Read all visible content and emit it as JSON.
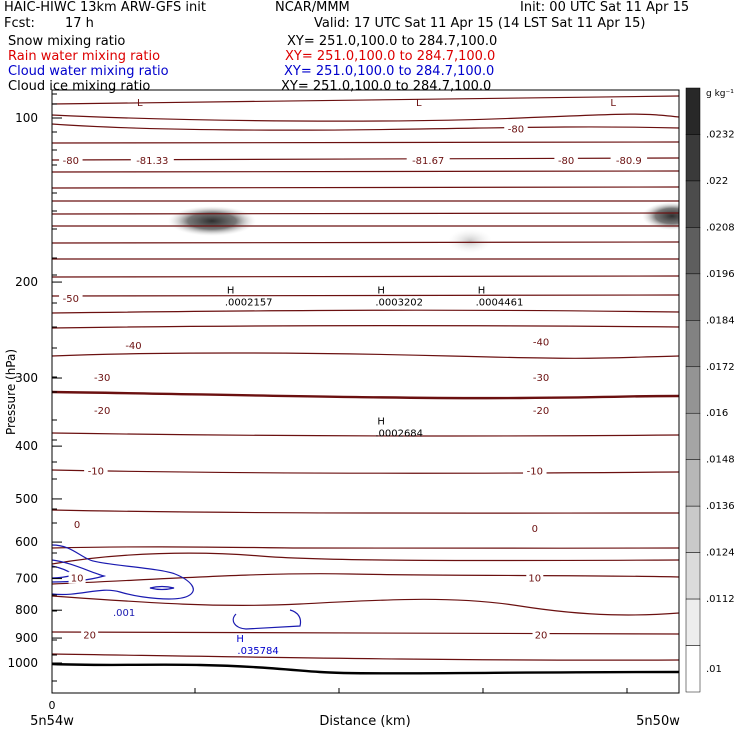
{
  "header": {
    "title_left": "HAIC-HIWC 13km ARW-GFS init",
    "title_center": "NCAR/MMM",
    "init": "Init: 00 UTC Sat 11 Apr 15",
    "fcst_label": "Fcst:",
    "fcst_value": "17 h",
    "valid": "Valid: 17 UTC Sat 11 Apr 15 (14 LST Sat 11 Apr 15)",
    "fields": [
      {
        "name": "Snow mixing ratio",
        "xy": "XY= 251.0,100.0 to 284.7,100.0",
        "color": "#000000"
      },
      {
        "name": "Rain water mixing ratio",
        "xy": "XY= 251.0,100.0 to 284.7,100.0",
        "color": "#dd0000"
      },
      {
        "name": "Cloud water mixing ratio",
        "xy": "XY= 251.0,100.0 to 284.7,100.0",
        "color": "#0000cc"
      },
      {
        "name": "Cloud ice mixing ratio",
        "xy": "XY= 251.0,100.0 to 284.7,100.0",
        "color": "#000000"
      }
    ]
  },
  "chart_data": {
    "type": "contour cross-section",
    "ylabel": "Pressure (hPa)",
    "xlabel": "Distance (km)",
    "x_tick_label": "0",
    "x_endpoint_left": "5n54w",
    "x_endpoint_right": "5n50w",
    "y_ticks": [
      "100",
      "200",
      "300",
      "400",
      "500",
      "600",
      "700",
      "800",
      "900",
      "1000"
    ],
    "y_scale": "log",
    "ylim": [
      1050,
      50
    ],
    "colorbar": {
      "unit": "g kg⁻¹",
      "labels": [
        ".0232",
        ".022",
        ".0208",
        ".0196",
        ".0184",
        ".0172",
        ".016",
        ".0148",
        ".0136",
        ".0124",
        ".0112",
        ".01"
      ]
    },
    "temperature_labels": [
      {
        "text": "-80",
        "p": 120,
        "xf": 0.03
      },
      {
        "text": "-81.33",
        "p": 120,
        "xf": 0.16
      },
      {
        "text": "-81.67",
        "p": 120,
        "xf": 0.6
      },
      {
        "text": "-80",
        "p": 105,
        "xf": 0.74
      },
      {
        "text": "-80",
        "p": 120,
        "xf": 0.82
      },
      {
        "text": "-80.9",
        "p": 120,
        "xf": 0.92
      },
      {
        "text": "-50",
        "p": 215,
        "xf": 0.03
      },
      {
        "text": "-40",
        "p": 262,
        "xf": 0.13
      },
      {
        "text": "-40",
        "p": 258,
        "xf": 0.78
      },
      {
        "text": "-30",
        "p": 300,
        "xf": 0.08
      },
      {
        "text": "-30",
        "p": 300,
        "xf": 0.78
      },
      {
        "text": "-20",
        "p": 345,
        "xf": 0.08
      },
      {
        "text": "-20",
        "p": 345,
        "xf": 0.78
      },
      {
        "text": "-10",
        "p": 445,
        "xf": 0.07
      },
      {
        "text": "-10",
        "p": 445,
        "xf": 0.77
      },
      {
        "text": "0",
        "p": 558,
        "xf": 0.04
      },
      {
        "text": "0",
        "p": 568,
        "xf": 0.77
      },
      {
        "text": "10",
        "p": 700,
        "xf": 0.04
      },
      {
        "text": "10",
        "p": 700,
        "xf": 0.77
      },
      {
        "text": "20",
        "p": 890,
        "xf": 0.06
      },
      {
        "text": "20",
        "p": 890,
        "xf": 0.78
      }
    ],
    "extrema_labels": [
      {
        "mark": "L",
        "value": "",
        "p": 95,
        "xf": 0.14,
        "color": "#6b0f0f"
      },
      {
        "mark": "L",
        "value": "",
        "p": 95,
        "xf": 0.585,
        "color": "#6b0f0f"
      },
      {
        "mark": "L",
        "value": "",
        "p": 95,
        "xf": 0.895,
        "color": "#6b0f0f"
      },
      {
        "mark": "H",
        "value": ".0002157",
        "p": 210,
        "xf": 0.285,
        "color": "#000000"
      },
      {
        "mark": "H",
        "value": ".0003202",
        "p": 210,
        "xf": 0.525,
        "color": "#000000"
      },
      {
        "mark": "H",
        "value": ".0004461",
        "p": 210,
        "xf": 0.685,
        "color": "#000000"
      },
      {
        "mark": "H",
        "value": ".0002684",
        "p": 365,
        "xf": 0.525,
        "color": "#000000"
      },
      {
        "mark": "H",
        "value": ".035784",
        "p": 915,
        "xf": 0.3,
        "color": "#0000cc"
      }
    ],
    "cloud_water_label": {
      "text": ".001",
      "p": 820,
      "xf": 0.115
    }
  }
}
